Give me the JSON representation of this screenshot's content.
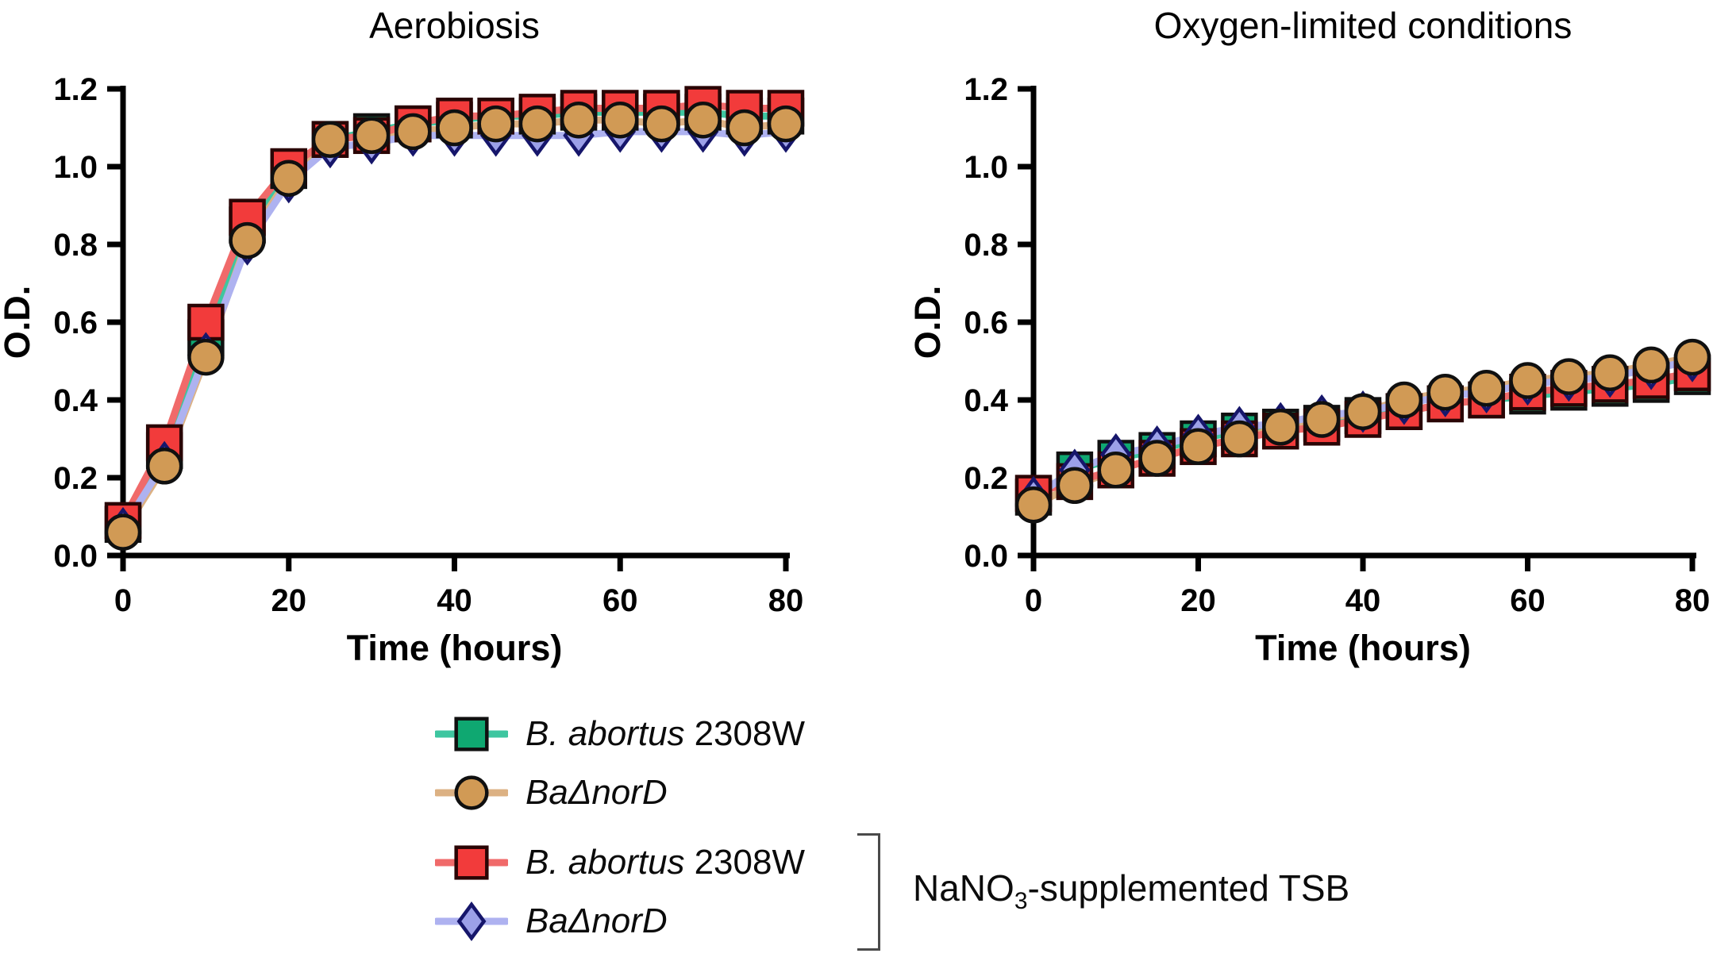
{
  "chart_data": [
    {
      "type": "line",
      "title": "Aerobiosis",
      "xlabel": "Time (hours)",
      "ylabel": "O.D.",
      "xlim": [
        0,
        80
      ],
      "ylim": [
        0,
        1.2
      ],
      "x_ticks": [
        0,
        20,
        40,
        60,
        80
      ],
      "y_ticks": [
        0,
        0.2,
        0.4,
        0.6,
        0.8,
        1.0,
        1.2
      ],
      "grid": false,
      "x": [
        0,
        5,
        10,
        15,
        20,
        25,
        30,
        35,
        40,
        45,
        50,
        55,
        60,
        65,
        70,
        75,
        80
      ],
      "series": [
        {
          "name": "B. abortus 2308W",
          "medium": "TSB",
          "marker": "square",
          "fill": "#0FA871",
          "line": "#3EC6A0",
          "outline": "#101010",
          "values": [
            0.08,
            0.27,
            0.56,
            0.85,
            0.99,
            1.07,
            1.09,
            1.11,
            1.12,
            1.13,
            1.13,
            1.14,
            1.14,
            1.14,
            1.14,
            1.13,
            1.13
          ]
        },
        {
          "name": "BaΔnorD",
          "medium": "TSB",
          "marker": "circle",
          "fill": "#D19A55",
          "line": "#DCB183",
          "outline": "#101010",
          "values": [
            0.06,
            0.23,
            0.51,
            0.81,
            0.97,
            1.07,
            1.08,
            1.09,
            1.1,
            1.11,
            1.11,
            1.12,
            1.12,
            1.11,
            1.12,
            1.1,
            1.11
          ]
        },
        {
          "name": "B. abortus 2308W",
          "medium": "NaNO3-supplemented TSB",
          "marker": "square",
          "fill": "#F23B3B",
          "line": "#F06A6A",
          "outline": "#2A0505",
          "values": [
            0.09,
            0.29,
            0.6,
            0.87,
            1.0,
            1.07,
            1.08,
            1.11,
            1.13,
            1.13,
            1.14,
            1.15,
            1.15,
            1.15,
            1.16,
            1.15,
            1.15
          ]
        },
        {
          "name": "BaΔnorD",
          "medium": "NaNO3-supplemented TSB",
          "marker": "diamond",
          "fill": "#9CA0E8",
          "line": "#AEB2F0",
          "outline": "#16166B",
          "values": [
            0.07,
            0.24,
            0.52,
            0.8,
            0.96,
            1.05,
            1.06,
            1.08,
            1.08,
            1.08,
            1.08,
            1.08,
            1.09,
            1.09,
            1.09,
            1.08,
            1.09
          ]
        }
      ]
    },
    {
      "type": "line",
      "title": "Oxygen-limited conditions",
      "xlabel": "Time (hours)",
      "ylabel": "O.D.",
      "xlim": [
        0,
        80
      ],
      "ylim": [
        0,
        1.2
      ],
      "x_ticks": [
        0,
        20,
        40,
        60,
        80
      ],
      "y_ticks": [
        0,
        0.2,
        0.4,
        0.6,
        0.8,
        1.0,
        1.2
      ],
      "grid": false,
      "x": [
        0,
        5,
        10,
        15,
        20,
        25,
        30,
        35,
        40,
        45,
        50,
        55,
        60,
        65,
        70,
        75,
        80
      ],
      "series": [
        {
          "name": "B. abortus 2308W",
          "medium": "TSB",
          "marker": "square",
          "fill": "#0FA871",
          "line": "#3EC6A0",
          "outline": "#101010",
          "values": [
            0.15,
            0.22,
            0.25,
            0.27,
            0.3,
            0.32,
            0.33,
            0.34,
            0.36,
            0.37,
            0.39,
            0.4,
            0.41,
            0.42,
            0.43,
            0.44,
            0.46
          ]
        },
        {
          "name": "BaΔnorD",
          "medium": "TSB",
          "marker": "circle",
          "fill": "#D19A55",
          "line": "#DCB183",
          "outline": "#101010",
          "values": [
            0.13,
            0.18,
            0.22,
            0.25,
            0.28,
            0.3,
            0.33,
            0.35,
            0.37,
            0.4,
            0.42,
            0.43,
            0.45,
            0.46,
            0.47,
            0.49,
            0.51
          ]
        },
        {
          "name": "B. abortus 2308W",
          "medium": "NaNO3-supplemented TSB",
          "marker": "square",
          "fill": "#F23B3B",
          "line": "#F06A6A",
          "outline": "#2A0505",
          "values": [
            0.16,
            0.19,
            0.22,
            0.25,
            0.28,
            0.3,
            0.32,
            0.33,
            0.35,
            0.37,
            0.39,
            0.4,
            0.42,
            0.43,
            0.44,
            0.45,
            0.47
          ]
        },
        {
          "name": "BaΔnorD",
          "medium": "NaNO3-supplemented TSB",
          "marker": "diamond",
          "fill": "#9CA0E8",
          "line": "#AEB2F0",
          "outline": "#16166B",
          "values": [
            0.15,
            0.22,
            0.26,
            0.28,
            0.31,
            0.33,
            0.34,
            0.36,
            0.37,
            0.39,
            0.41,
            0.42,
            0.44,
            0.45,
            0.46,
            0.48,
            0.5
          ]
        }
      ]
    }
  ],
  "legend": {
    "entries": [
      {
        "marker": "square",
        "fill": "#0FA871",
        "line": "#3EC6A0",
        "outline": "#101010",
        "label_italic": "B. abortus",
        "label_regular": "2308W"
      },
      {
        "marker": "circle",
        "fill": "#D19A55",
        "line": "#DCB183",
        "outline": "#101010",
        "label_italic": "BaΔnorD",
        "label_regular": ""
      },
      {
        "marker": "square",
        "fill": "#F23B3B",
        "line": "#F06A6A",
        "outline": "#2A0505",
        "label_italic": "B. abortus",
        "label_regular": "2308W"
      },
      {
        "marker": "diamond",
        "fill": "#9CA0E8",
        "line": "#AEB2F0",
        "outline": "#16166B",
        "label_italic": "BaΔnorD",
        "label_regular": ""
      }
    ],
    "annotation": {
      "prefix": "NaNO",
      "sub": "3",
      "suffix": "-supplemented TSB"
    }
  }
}
